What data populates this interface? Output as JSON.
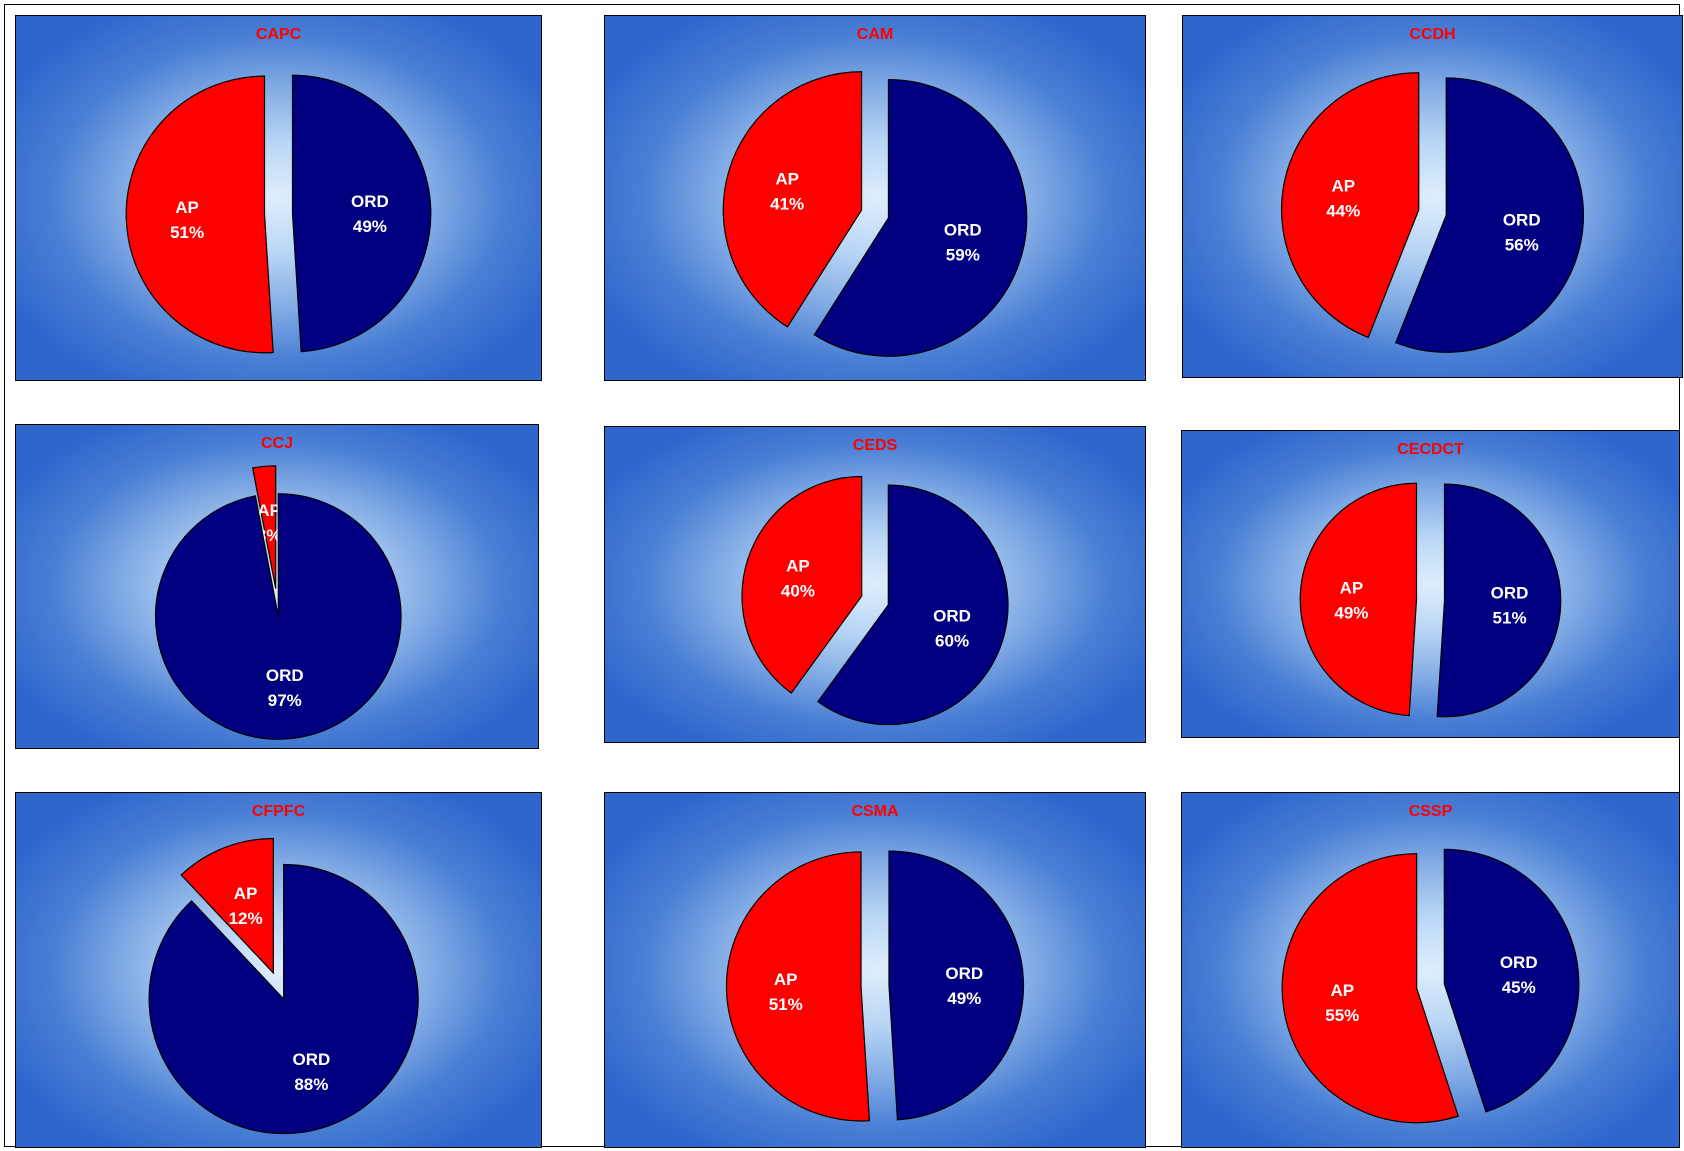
{
  "colors": {
    "AP": "#ff0000",
    "ORD": "#000080",
    "title": "#ff0000",
    "label": "#ffffff"
  },
  "chart_data": [
    {
      "type": "pie",
      "title": "CAPC",
      "slices": [
        {
          "label": "AP",
          "value": 51,
          "display": "51%"
        },
        {
          "label": "ORD",
          "value": 49,
          "display": "49%"
        }
      ]
    },
    {
      "type": "pie",
      "title": "CAM",
      "slices": [
        {
          "label": "AP",
          "value": 41,
          "display": "41%"
        },
        {
          "label": "ORD",
          "value": 59,
          "display": "59%"
        }
      ]
    },
    {
      "type": "pie",
      "title": "CCDH",
      "slices": [
        {
          "label": "AP",
          "value": 44,
          "display": "44%"
        },
        {
          "label": "ORD",
          "value": 56,
          "display": "56%"
        }
      ]
    },
    {
      "type": "pie",
      "title": "CCJ",
      "slices": [
        {
          "label": "AP",
          "value": 3,
          "display": "3%"
        },
        {
          "label": "ORD",
          "value": 97,
          "display": "97%"
        }
      ]
    },
    {
      "type": "pie",
      "title": "CEDS",
      "slices": [
        {
          "label": "AP",
          "value": 40,
          "display": "40%"
        },
        {
          "label": "ORD",
          "value": 60,
          "display": "60%"
        }
      ]
    },
    {
      "type": "pie",
      "title": "CECDCT",
      "slices": [
        {
          "label": "AP",
          "value": 49,
          "display": "49%"
        },
        {
          "label": "ORD",
          "value": 51,
          "display": "51%"
        }
      ]
    },
    {
      "type": "pie",
      "title": "CFPFC",
      "slices": [
        {
          "label": "AP",
          "value": 12,
          "display": "12%"
        },
        {
          "label": "ORD",
          "value": 88,
          "display": "88%"
        }
      ]
    },
    {
      "type": "pie",
      "title": "CSMA",
      "slices": [
        {
          "label": "AP",
          "value": 51,
          "display": "51%"
        },
        {
          "label": "ORD",
          "value": 49,
          "display": "49%"
        }
      ]
    },
    {
      "type": "pie",
      "title": "CSSP",
      "slices": [
        {
          "label": "AP",
          "value": 55,
          "display": "55%"
        },
        {
          "label": "ORD",
          "value": 45,
          "display": "45%"
        }
      ]
    }
  ]
}
